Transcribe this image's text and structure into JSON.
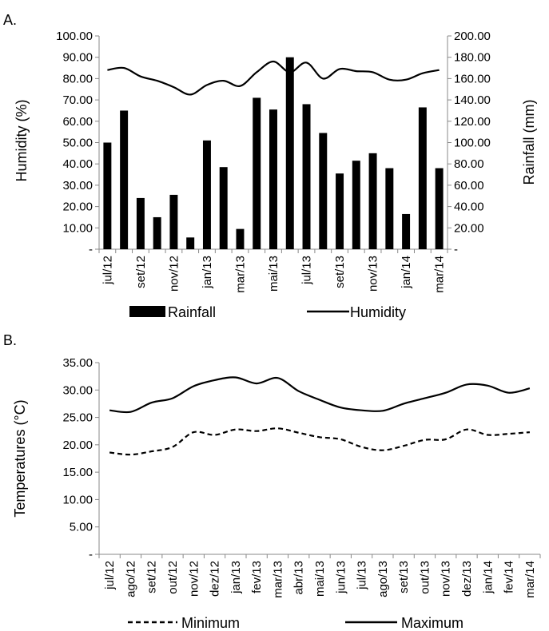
{
  "chart_data": [
    {
      "panel_label": "A.",
      "type": "bar+line",
      "categories": [
        "jul/12",
        "ago/12",
        "set/12",
        "out/12",
        "nov/12",
        "dez/12",
        "jan/13",
        "fev/13",
        "mar/13",
        "abr/13",
        "mai/13",
        "jun/13",
        "jul/13",
        "ago/13",
        "set/13",
        "out/13",
        "nov/13",
        "dez/13",
        "jan/14",
        "fev/14",
        "mar/14"
      ],
      "xtick_labels_shown": [
        "jul/12",
        "set/12",
        "nov/12",
        "jan/13",
        "mar/13",
        "mai/13",
        "jul/13",
        "set/13",
        "nov/13",
        "jan/14",
        "mar/14"
      ],
      "ylabel_left": "Humidity  (%)",
      "ylabel_right": "Rainfall (mm)",
      "ylim_left": [
        0,
        100
      ],
      "ylim_right": [
        0,
        200
      ],
      "yticks_left": [
        "-",
        "10.00",
        "20.00",
        "30.00",
        "40.00",
        "50.00",
        "60.00",
        "70.00",
        "80.00",
        "90.00",
        "100.00"
      ],
      "yticks_right": [
        "-",
        "20.00",
        "40.00",
        "60.00",
        "80.00",
        "100.00",
        "120.00",
        "140.00",
        "160.00",
        "180.00",
        "200.00"
      ],
      "series": [
        {
          "name": "Rainfall",
          "kind": "bar",
          "axis": "right",
          "values": [
            100,
            130,
            48,
            30,
            51,
            11,
            102,
            77,
            19,
            142,
            131,
            180,
            136,
            109,
            71,
            83,
            90,
            76,
            33,
            133,
            76
          ]
        },
        {
          "name": "Humidity",
          "kind": "line",
          "axis": "left",
          "values": [
            84,
            85,
            81,
            79,
            76,
            72.5,
            77,
            79,
            76.5,
            83,
            88,
            83,
            87.5,
            80,
            84.5,
            83.5,
            83,
            79.5,
            79.5,
            82.5,
            84
          ]
        }
      ],
      "legend": [
        "Rainfall",
        "Humidity"
      ],
      "legend_position": "bottom"
    },
    {
      "panel_label": "B.",
      "type": "line",
      "categories": [
        "jul/12",
        "ago/12",
        "set/12",
        "out/12",
        "nov/12",
        "dez/12",
        "jan/13",
        "fev/13",
        "mar/13",
        "abr/13",
        "mai/13",
        "jun/13",
        "jul/13",
        "ago/13",
        "set/13",
        "out/13",
        "nov/13",
        "dez/13",
        "jan/14",
        "fev/14",
        "mar/14"
      ],
      "ylabel": "Temperatures (°C)",
      "ylim": [
        0,
        35
      ],
      "yticks": [
        "-",
        "5.00",
        "10.00",
        "15.00",
        "20.00",
        "25.00",
        "30.00",
        "35.00"
      ],
      "series": [
        {
          "name": "Minimum",
          "style": "dashed",
          "values": [
            18.6,
            18.2,
            18.8,
            19.6,
            22.3,
            21.8,
            22.8,
            22.5,
            23.0,
            22.2,
            21.4,
            21.0,
            19.6,
            19.0,
            19.8,
            20.9,
            21.0,
            22.8,
            21.8,
            22.0,
            22.3
          ]
        },
        {
          "name": "Maximum",
          "style": "solid",
          "values": [
            26.3,
            26.0,
            27.7,
            28.5,
            30.7,
            31.8,
            32.3,
            31.2,
            32.2,
            29.8,
            28.2,
            26.8,
            26.3,
            26.2,
            27.5,
            28.5,
            29.5,
            31.0,
            30.8,
            29.5,
            30.3
          ]
        }
      ],
      "legend": [
        "Minimum",
        "Maximum"
      ],
      "legend_position": "bottom"
    }
  ]
}
